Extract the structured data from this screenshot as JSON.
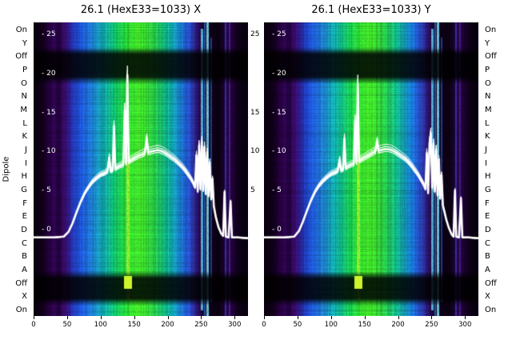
{
  "chart_data": {
    "type": "heatmap",
    "y_axis_title": "Dipole",
    "row_labels": [
      "On",
      "Y",
      "Off",
      "P",
      "O",
      "N",
      "M",
      "L",
      "K",
      "J",
      "I",
      "H",
      "G",
      "F",
      "E",
      "D",
      "C",
      "B",
      "A",
      "Off",
      "X",
      "On"
    ],
    "x_range": [
      0,
      320
    ],
    "x_ticks": [
      {
        "v": 0,
        "label": "0"
      },
      {
        "v": 50,
        "label": "50"
      },
      {
        "v": 100,
        "label": "100"
      },
      {
        "v": 150,
        "label": "150"
      },
      {
        "v": 200,
        "label": "200"
      },
      {
        "v": 250,
        "label": "250"
      },
      {
        "v": 300,
        "label": "300"
      }
    ],
    "value_ticks_inside": [
      {
        "v": 25,
        "label": "- 25"
      },
      {
        "v": 20,
        "label": "- 20"
      },
      {
        "v": 15,
        "label": "- 15"
      },
      {
        "v": 10,
        "label": "- 10"
      },
      {
        "v": 5,
        "label": "- 5"
      },
      {
        "v": 0,
        "label": "- 0"
      }
    ],
    "value_ticks_gap": [
      {
        "v": 25,
        "label": "25"
      },
      {
        "v": 15,
        "label": "15"
      },
      {
        "v": 10,
        "label": "10"
      },
      {
        "v": 5,
        "label": "5"
      }
    ],
    "colormap_stops": [
      [
        0,
        "#08000d"
      ],
      [
        14,
        "#10001a"
      ],
      [
        22,
        "#23003a"
      ],
      [
        30,
        "#2e0450"
      ],
      [
        38,
        "#1e0238"
      ],
      [
        44,
        "#3a0a66"
      ],
      [
        50,
        "#33157f"
      ],
      [
        56,
        "#262a9e"
      ],
      [
        62,
        "#1f41c2"
      ],
      [
        70,
        "#1e55d6"
      ],
      [
        80,
        "#1e6ad2"
      ],
      [
        90,
        "#1b85c8"
      ],
      [
        100,
        "#14a0b4"
      ],
      [
        110,
        "#0fb49a"
      ],
      [
        120,
        "#12c16e"
      ],
      [
        130,
        "#1bca4a"
      ],
      [
        142,
        "#2ed32f"
      ],
      [
        155,
        "#3fd926"
      ],
      [
        168,
        "#35d12f"
      ],
      [
        180,
        "#27c94b"
      ],
      [
        192,
        "#17bd75"
      ],
      [
        202,
        "#10ad9c"
      ],
      [
        212,
        "#1492c0"
      ],
      [
        222,
        "#1b6fd2"
      ],
      [
        230,
        "#2450c8"
      ],
      [
        237,
        "#2c35a8"
      ],
      [
        243,
        "#2a1670"
      ],
      [
        248,
        "#1f0844"
      ],
      [
        253,
        "#160428"
      ],
      [
        260,
        "#10021c"
      ],
      [
        268,
        "#0c0114"
      ],
      [
        276,
        "#0a0110"
      ],
      [
        284,
        "#1c0330"
      ],
      [
        290,
        "#2a0548"
      ],
      [
        296,
        "#20033a"
      ],
      [
        302,
        "#120120"
      ],
      [
        310,
        "#0a0012"
      ],
      [
        320,
        "#070010"
      ]
    ],
    "dark_bands": [
      {
        "y0": 0.095,
        "y1": 0.196,
        "f": 0.14
      },
      {
        "y0": 0.858,
        "y1": 0.951,
        "f": 0.14
      }
    ],
    "panels": [
      {
        "title": "26.1 (HexE33=1033) X",
        "curve": [
          [
            0,
            -1
          ],
          [
            30,
            -1
          ],
          [
            45,
            -0.9
          ],
          [
            52,
            -0.3
          ],
          [
            58,
            0.8
          ],
          [
            64,
            2.2
          ],
          [
            70,
            3.5
          ],
          [
            76,
            4.6
          ],
          [
            82,
            5.4
          ],
          [
            88,
            6.1
          ],
          [
            94,
            6.6
          ],
          [
            100,
            7
          ],
          [
            106,
            7.2
          ],
          [
            110,
            7.4
          ],
          [
            113,
            9.2
          ],
          [
            115,
            7.5
          ],
          [
            118,
            7.6
          ],
          [
            120,
            13.2
          ],
          [
            122,
            7.8
          ],
          [
            126,
            8
          ],
          [
            130,
            8.2
          ],
          [
            134,
            8.3
          ],
          [
            136,
            15.3
          ],
          [
            138,
            8.5
          ],
          [
            140,
            19.8
          ],
          [
            142,
            8.7
          ],
          [
            146,
            8.9
          ],
          [
            150,
            9.1
          ],
          [
            154,
            9.3
          ],
          [
            158,
            9.5
          ],
          [
            162,
            9.6
          ],
          [
            166,
            9.8
          ],
          [
            169,
            11.6
          ],
          [
            171,
            9.9
          ],
          [
            175,
            10
          ],
          [
            180,
            10.1
          ],
          [
            185,
            10.2
          ],
          [
            190,
            10.1
          ],
          [
            195,
            9.9
          ],
          [
            200,
            9.6
          ],
          [
            205,
            9.3
          ],
          [
            210,
            9
          ],
          [
            215,
            8.6
          ],
          [
            220,
            8.2
          ],
          [
            225,
            7.7
          ],
          [
            230,
            7.1
          ],
          [
            234,
            6.6
          ],
          [
            238,
            6
          ],
          [
            241,
            5.4
          ],
          [
            243,
            9.5
          ],
          [
            245,
            4.9
          ],
          [
            247,
            10.8
          ],
          [
            249,
            5.2
          ],
          [
            251,
            11.3
          ],
          [
            253,
            5
          ],
          [
            255,
            10.6
          ],
          [
            257,
            4.6
          ],
          [
            259,
            9.9
          ],
          [
            261,
            4.3
          ],
          [
            263,
            8.6
          ],
          [
            265,
            3.9
          ],
          [
            267,
            6.5
          ],
          [
            269,
            3
          ],
          [
            272,
            1.6
          ],
          [
            276,
            0.3
          ],
          [
            280,
            -0.5
          ],
          [
            283,
            -0.8
          ],
          [
            285,
            4.8
          ],
          [
            287,
            -0.9
          ],
          [
            291,
            -1
          ],
          [
            294,
            3.6
          ],
          [
            296,
            -1
          ],
          [
            305,
            -1
          ],
          [
            320,
            -1.1
          ]
        ],
        "features": {
          "lines": [
            {
              "x": 140,
              "w": 2,
              "color": "#a6ff2e",
              "y0": 0.44,
              "y1": 0.945,
              "a": 0.85
            },
            {
              "x": 251,
              "w": 1.4,
              "color": "#66d9ff",
              "y0": 0.02,
              "y1": 0.98,
              "a": 0.8
            },
            {
              "x": 255,
              "w": 1,
              "color": "#2f8fff",
              "y0": 0,
              "y1": 1,
              "a": 0.6
            },
            {
              "x": 259,
              "w": 1.8,
              "color": "#7de8ff",
              "y0": 0,
              "y1": 1,
              "a": 0.85
            },
            {
              "x": 264,
              "w": 1,
              "color": "#2f6fff",
              "y0": 0.05,
              "y1": 0.95,
              "a": 0.55
            },
            {
              "x": 286,
              "w": 1.4,
              "color": "#4055ff",
              "y0": 0,
              "y1": 1,
              "a": 0.55
            },
            {
              "x": 292,
              "w": 1,
              "color": "#6a3fd0",
              "y0": 0,
              "y1": 1,
              "a": 0.45
            }
          ],
          "spots": [
            {
              "x": 140,
              "w": 5,
              "y0": 0.862,
              "y1": 0.905,
              "color": "#d8ff2e",
              "a": 0.95
            }
          ]
        }
      },
      {
        "title": "26.1 (HexE33=1033) Y",
        "curve": [
          [
            0,
            -1
          ],
          [
            30,
            -1
          ],
          [
            45,
            -0.9
          ],
          [
            52,
            -0.2
          ],
          [
            58,
            1
          ],
          [
            64,
            2.4
          ],
          [
            70,
            3.7
          ],
          [
            76,
            4.8
          ],
          [
            82,
            5.6
          ],
          [
            88,
            6.2
          ],
          [
            94,
            6.7
          ],
          [
            100,
            7.1
          ],
          [
            106,
            7.3
          ],
          [
            110,
            7.5
          ],
          [
            113,
            8.9
          ],
          [
            115,
            7.6
          ],
          [
            118,
            7.7
          ],
          [
            120,
            11.6
          ],
          [
            122,
            7.9
          ],
          [
            126,
            8.1
          ],
          [
            130,
            8.3
          ],
          [
            134,
            8.4
          ],
          [
            136,
            13.9
          ],
          [
            138,
            8.6
          ],
          [
            140,
            18.7
          ],
          [
            142,
            8.8
          ],
          [
            146,
            9
          ],
          [
            150,
            9.2
          ],
          [
            154,
            9.4
          ],
          [
            158,
            9.6
          ],
          [
            162,
            9.8
          ],
          [
            166,
            10
          ],
          [
            169,
            11.2
          ],
          [
            171,
            10.1
          ],
          [
            175,
            10.2
          ],
          [
            180,
            10.3
          ],
          [
            185,
            10.3
          ],
          [
            190,
            10.2
          ],
          [
            195,
            10
          ],
          [
            200,
            9.7
          ],
          [
            205,
            9.4
          ],
          [
            210,
            9.1
          ],
          [
            215,
            8.7
          ],
          [
            220,
            8.2
          ],
          [
            225,
            7.6
          ],
          [
            230,
            7
          ],
          [
            234,
            6.4
          ],
          [
            238,
            5.8
          ],
          [
            241,
            5.2
          ],
          [
            243,
            9.8
          ],
          [
            245,
            4.7
          ],
          [
            247,
            11
          ],
          [
            249,
            12.3
          ],
          [
            251,
            5.4
          ],
          [
            253,
            11
          ],
          [
            255,
            4.9
          ],
          [
            257,
            10.2
          ],
          [
            259,
            4.4
          ],
          [
            261,
            9
          ],
          [
            263,
            4
          ],
          [
            265,
            7
          ],
          [
            267,
            3.1
          ],
          [
            269,
            2.4
          ],
          [
            272,
            1.3
          ],
          [
            276,
            0.2
          ],
          [
            280,
            -0.6
          ],
          [
            283,
            -0.9
          ],
          [
            285,
            5
          ],
          [
            287,
            -0.9
          ],
          [
            291,
            -1
          ],
          [
            294,
            4
          ],
          [
            296,
            -1
          ],
          [
            305,
            -1
          ],
          [
            320,
            -1.1
          ]
        ],
        "features": {
          "lines": [
            {
              "x": 140,
              "w": 2,
              "color": "#a6ff2e",
              "y0": 0.42,
              "y1": 0.945,
              "a": 0.85
            },
            {
              "x": 251,
              "w": 1.4,
              "color": "#66d9ff",
              "y0": 0.02,
              "y1": 0.98,
              "a": 0.8
            },
            {
              "x": 255,
              "w": 1,
              "color": "#2f8fff",
              "y0": 0,
              "y1": 1,
              "a": 0.6
            },
            {
              "x": 259,
              "w": 1.8,
              "color": "#7de8ff",
              "y0": 0,
              "y1": 1,
              "a": 0.85
            },
            {
              "x": 264,
              "w": 1,
              "color": "#2f6fff",
              "y0": 0.05,
              "y1": 0.95,
              "a": 0.55
            },
            {
              "x": 286,
              "w": 1.4,
              "color": "#4055ff",
              "y0": 0,
              "y1": 1,
              "a": 0.55
            },
            {
              "x": 292,
              "w": 1,
              "color": "#6a3fd0",
              "y0": 0,
              "y1": 1,
              "a": 0.45
            }
          ],
          "spots": [
            {
              "x": 140,
              "w": 5,
              "y0": 0.862,
              "y1": 0.905,
              "color": "#d8ff2e",
              "a": 0.95
            }
          ]
        }
      }
    ],
    "curve_color": "#ffffff",
    "legend": null,
    "grid": false
  }
}
